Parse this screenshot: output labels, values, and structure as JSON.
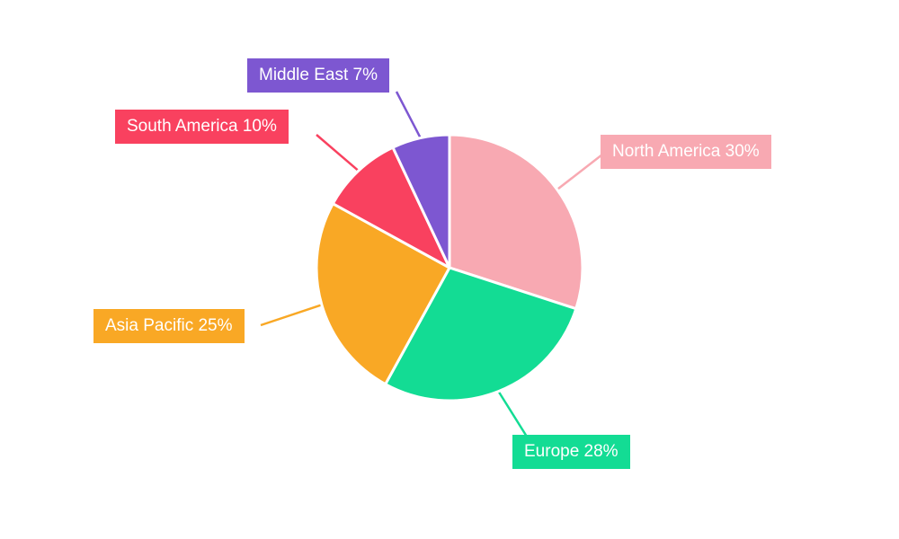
{
  "chart_data": {
    "type": "pie",
    "title": "",
    "categories": [
      "North America",
      "Europe",
      "Asia Pacific",
      "South America",
      "Middle East"
    ],
    "values": [
      30,
      28,
      25,
      10,
      7
    ],
    "unit": "%",
    "start_angle_deg": -90,
    "direction": "clockwise",
    "legend_position": "callout-labels",
    "background": "#ffffff",
    "slices": [
      {
        "label": "North America",
        "value": 30,
        "display": "North America 30%",
        "color": "#F8A9B2"
      },
      {
        "label": "Europe",
        "value": 28,
        "display": "Europe 28%",
        "color": "#13DC94"
      },
      {
        "label": "Asia Pacific",
        "value": 25,
        "display": "Asia Pacific 25%",
        "color": "#F9A825"
      },
      {
        "label": "South America",
        "value": 10,
        "display": "South America 10%",
        "color": "#F9415F"
      },
      {
        "label": "Middle East",
        "value": 7,
        "display": "Middle East 7%",
        "color": "#7D57D1"
      }
    ]
  }
}
